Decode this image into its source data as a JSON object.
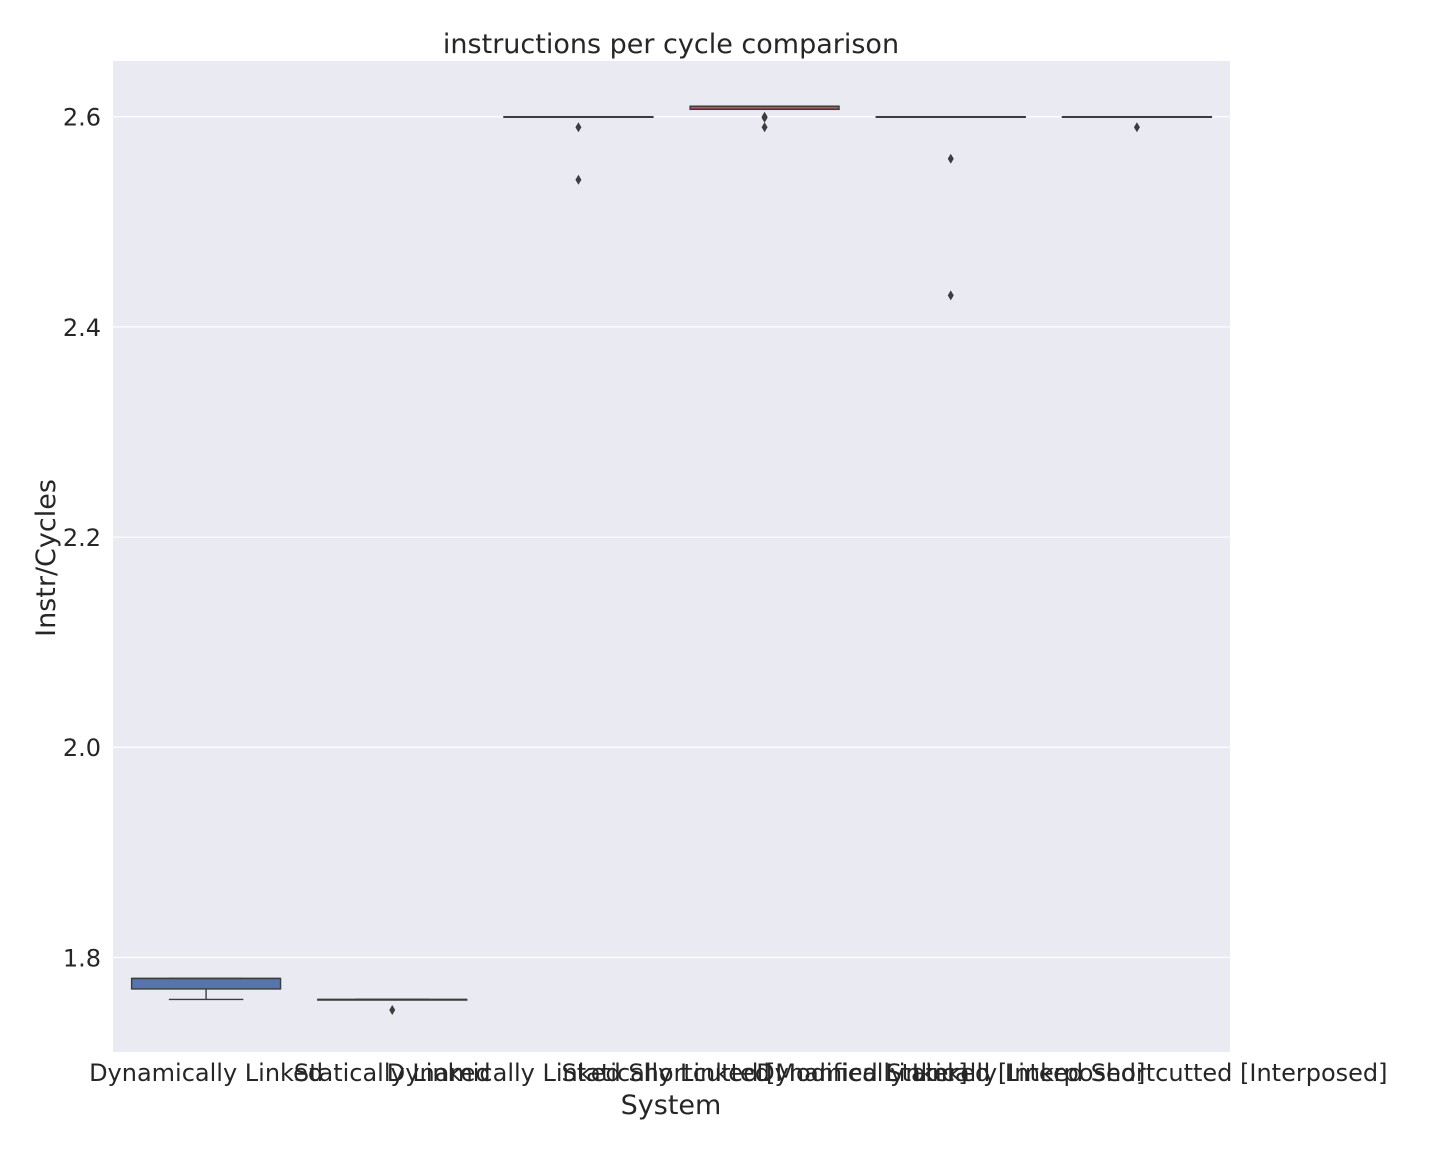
{
  "chart_data": {
    "type": "box",
    "title": "instructions per cycle comparison",
    "xlabel": "System",
    "ylabel": "Instr/Cycles",
    "ylim": [
      1.71,
      2.653
    ],
    "yticks": [
      1.8,
      2.0,
      2.2,
      2.4,
      2.6
    ],
    "grid": true,
    "legend": "none",
    "background_color": "#eaeaf2",
    "categories": [
      "Dynamically Linked",
      "Statically Linked",
      "Dynamically Linked Shortcutted",
      "Statically Linked [Modified Linker]",
      "Dynamically Linked [Interposed]",
      "Statically Linked Shortcutted [Interposed]"
    ],
    "boxes": [
      {
        "q1": 1.77,
        "median": 1.78,
        "q3": 1.78,
        "whisker_low": 1.76,
        "whisker_high": 1.78,
        "outliers": [],
        "color": "#5874ac"
      },
      {
        "q1": 1.76,
        "median": 1.76,
        "q3": 1.76,
        "whisker_low": 1.76,
        "whisker_high": 1.76,
        "outliers": [
          1.75
        ],
        "color": "#dd8452"
      },
      {
        "q1": 2.6,
        "median": 2.6,
        "q3": 2.6,
        "whisker_low": 2.6,
        "whisker_high": 2.6,
        "outliers": [
          2.59,
          2.54
        ],
        "color": "#55a868"
      },
      {
        "q1": 2.607,
        "median": 2.607,
        "q3": 2.61,
        "whisker_low": 2.607,
        "whisker_high": 2.61,
        "outliers": [
          2.6,
          2.599,
          2.59
        ],
        "color": "#c44e52"
      },
      {
        "q1": 2.6,
        "median": 2.6,
        "q3": 2.6,
        "whisker_low": 2.6,
        "whisker_high": 2.6,
        "outliers": [
          2.56,
          2.43
        ],
        "color": "#8172b3"
      },
      {
        "q1": 2.6,
        "median": 2.6,
        "q3": 2.6,
        "whisker_low": 2.6,
        "whisker_high": 2.6,
        "outliers": [
          2.59
        ],
        "color": "#937860"
      }
    ]
  }
}
